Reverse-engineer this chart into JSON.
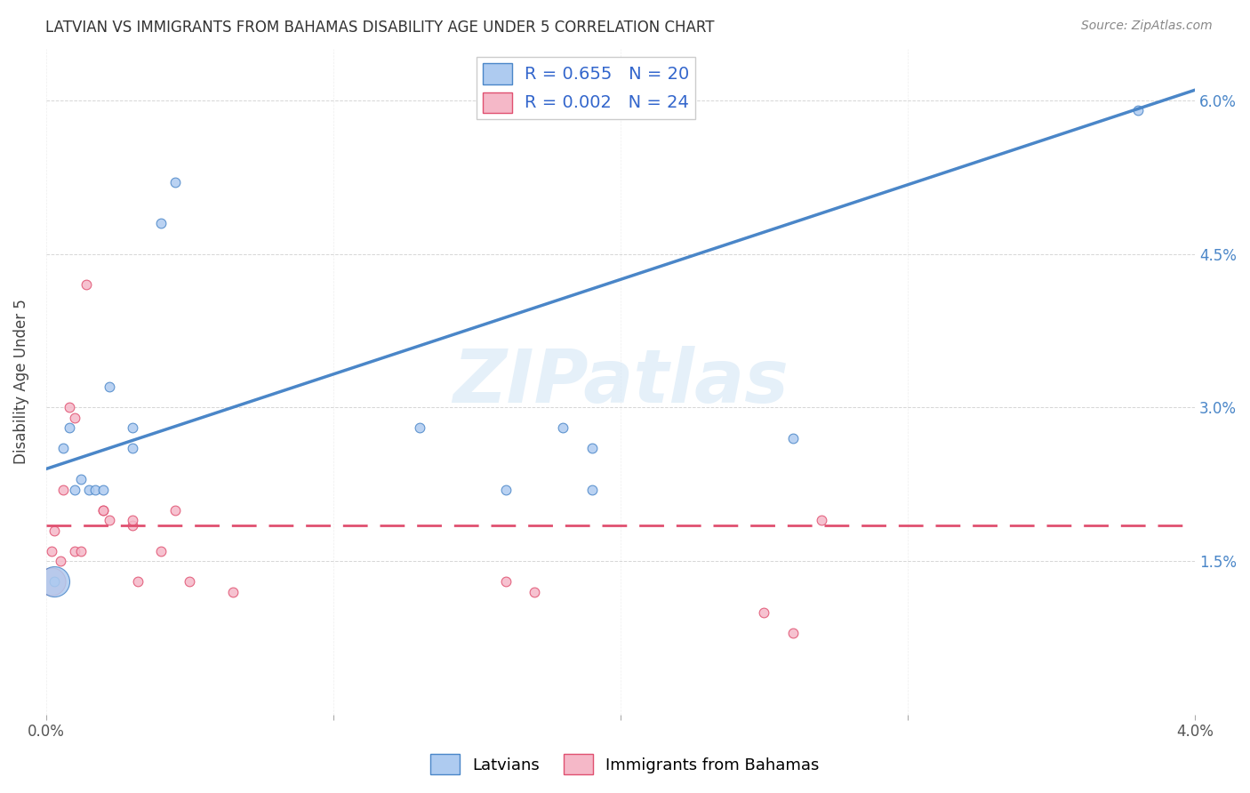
{
  "title": "LATVIAN VS IMMIGRANTS FROM BAHAMAS DISABILITY AGE UNDER 5 CORRELATION CHART",
  "source": "Source: ZipAtlas.com",
  "ylabel": "Disability Age Under 5",
  "watermark": "ZIPatlas",
  "xmin": 0.0,
  "xmax": 0.04,
  "ymin": 0.0,
  "ymax": 0.065,
  "x_ticks": [
    0.0,
    0.01,
    0.02,
    0.03,
    0.04
  ],
  "x_tick_labels": [
    "0.0%",
    "",
    "",
    "",
    "4.0%"
  ],
  "y_ticks": [
    0.0,
    0.015,
    0.03,
    0.045,
    0.06
  ],
  "y_tick_labels_right": [
    "",
    "1.5%",
    "3.0%",
    "4.5%",
    "6.0%"
  ],
  "legend_latvian_R": "0.655",
  "legend_latvian_N": "20",
  "legend_bahamas_R": "0.002",
  "legend_bahamas_N": "24",
  "latvian_color": "#aecbf0",
  "bahamas_color": "#f5b8c8",
  "line_latvian_color": "#4a86c8",
  "line_bahamas_color": "#e05070",
  "latvian_line_x0": 0.0,
  "latvian_line_y0": 0.024,
  "latvian_line_x1": 0.04,
  "latvian_line_y1": 0.061,
  "bahamas_line_x0": 0.0,
  "bahamas_line_y0": 0.0185,
  "bahamas_line_x1": 0.04,
  "bahamas_line_y1": 0.0185,
  "latvian_points_x": [
    0.0003,
    0.0006,
    0.0008,
    0.001,
    0.0012,
    0.0015,
    0.0017,
    0.002,
    0.0022,
    0.003,
    0.003,
    0.004,
    0.0045,
    0.013,
    0.016,
    0.018,
    0.019,
    0.019,
    0.026,
    0.038
  ],
  "latvian_points_y": [
    0.013,
    0.026,
    0.028,
    0.022,
    0.023,
    0.022,
    0.022,
    0.022,
    0.032,
    0.026,
    0.028,
    0.048,
    0.052,
    0.028,
    0.022,
    0.028,
    0.022,
    0.026,
    0.027,
    0.059
  ],
  "bahamas_points_x": [
    0.0002,
    0.0003,
    0.0005,
    0.0006,
    0.0008,
    0.001,
    0.001,
    0.0012,
    0.0014,
    0.002,
    0.002,
    0.0022,
    0.003,
    0.003,
    0.0032,
    0.004,
    0.005,
    0.0045,
    0.0065,
    0.016,
    0.017,
    0.025,
    0.026,
    0.027
  ],
  "bahamas_points_y": [
    0.016,
    0.018,
    0.015,
    0.022,
    0.03,
    0.029,
    0.016,
    0.016,
    0.042,
    0.02,
    0.02,
    0.019,
    0.0185,
    0.019,
    0.013,
    0.016,
    0.013,
    0.02,
    0.012,
    0.013,
    0.012,
    0.01,
    0.008,
    0.019
  ],
  "latvian_sizes": [
    60,
    60,
    60,
    60,
    60,
    60,
    60,
    60,
    60,
    60,
    60,
    60,
    60,
    60,
    60,
    60,
    60,
    60,
    60,
    60
  ],
  "bahamas_sizes": [
    60,
    60,
    60,
    60,
    60,
    60,
    60,
    60,
    60,
    60,
    60,
    60,
    60,
    60,
    60,
    60,
    60,
    60,
    60,
    60,
    60,
    60,
    60,
    60
  ],
  "latvian_large_x": [
    0.0003
  ],
  "latvian_large_y": [
    0.013
  ],
  "bahamas_large_x": [
    0.0002
  ],
  "bahamas_large_y": [
    0.013
  ]
}
